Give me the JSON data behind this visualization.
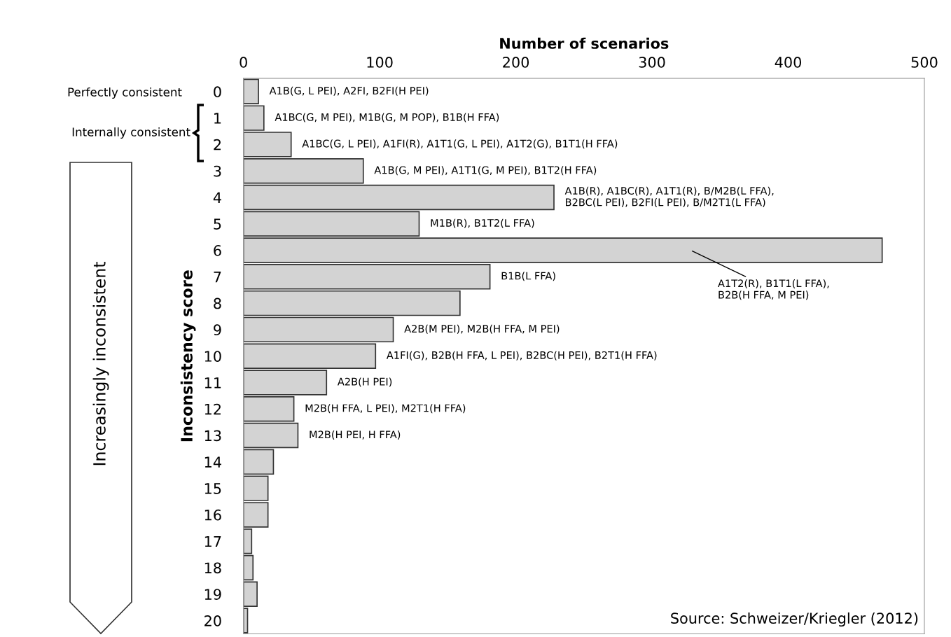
{
  "chart_data": {
    "type": "bar",
    "orientation": "horizontal",
    "xlabel": "Number of scenarios",
    "ylabel": "Inconsistency score",
    "categories": [
      "0",
      "1",
      "2",
      "3",
      "4",
      "5",
      "6",
      "7",
      "8",
      "9",
      "10",
      "11",
      "12",
      "13",
      "14",
      "15",
      "16",
      "17",
      "18",
      "19",
      "20"
    ],
    "values": [
      11,
      15,
      35,
      88,
      228,
      129,
      469,
      181,
      159,
      110,
      97,
      61,
      37,
      40,
      22,
      18,
      18,
      6,
      7,
      10,
      3
    ],
    "color": "#d3d3d3",
    "value_labels": [
      "A1B(G, L PEI), A2FI, B2FI(H PEI)",
      "A1BC(G, M PEI), M1B(G, M POP), B1B(H FFA)",
      "A1BC(G, L PEI), A1FI(R), A1T1(G, L PEI), A1T2(G), B1T1(H FFA)",
      "A1B(G, M PEI), A1T1(G, M PEI), B1T2(H FFA)",
      "A1B(R), A1BC(R), A1T1(R), B/M2B(L FFA),\nB2BC(L PEI), B2FI(L PEI), B/M2T1(L FFA)",
      "M1B(R), B1T2(L FFA)",
      null,
      "B1B(L FFA)",
      null,
      "A2B(M PEI), M2B(H FFA, M PEI)",
      "A1FI(G), B2B(H FFA, L PEI), B2BC(H PEI), B2T1(H FFA)",
      "A2B(H PEI)",
      "M2B(H FFA, L PEI), M2T1(H FFA)",
      "M2B(H PEI, H FFA)",
      null,
      null,
      null,
      null,
      null,
      null,
      null
    ],
    "xlim": [
      0,
      500
    ],
    "xticks": [
      0,
      100,
      200,
      300,
      400,
      500
    ],
    "grid": false,
    "annotations": [
      "Perfectly consistent",
      "Internally consistent",
      "Increasingly inconsistent",
      "A1T2(R), B1T1(L FFA),\nB2B(H FFA, M PEI)",
      "Source: Schweizer/Kriegler (2012)"
    ]
  }
}
